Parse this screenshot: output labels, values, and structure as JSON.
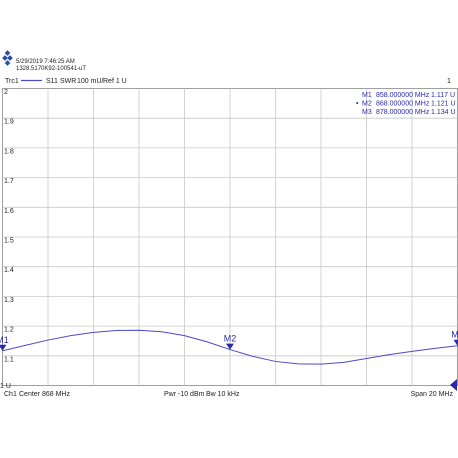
{
  "chart_data": {
    "type": "line",
    "timestamp": "5/29/2019 7:46:25 AM",
    "instrument_id": "1328.5170K92-100541-uT",
    "trace": {
      "name": "Trc1",
      "measurement": "S11",
      "format": "SWR",
      "scale": "100 mU/",
      "reference": "Ref 1 U",
      "channel_number": "1"
    },
    "footer": {
      "channel": "Ch1",
      "center": "Center 868 MHz",
      "power": "Pwr -10 dBm",
      "bandwidth": "Bw 10 kHz",
      "span": "Span 20 MHz"
    },
    "xlim": [
      858,
      878
    ],
    "ylim": [
      1,
      2
    ],
    "yticks": [
      {
        "value": 1,
        "label": "1 U"
      },
      1.1,
      1.2,
      1.3,
      1.4,
      1.5,
      1.6,
      1.7,
      1.8,
      1.9,
      2
    ],
    "grid": true,
    "x": [
      858,
      859,
      860,
      861,
      862,
      863,
      864,
      865,
      866,
      867,
      868,
      869,
      870,
      871,
      872,
      873,
      874,
      875,
      876,
      877,
      878
    ],
    "series": [
      {
        "name": "S11",
        "color": "#4a4ac8",
        "values": [
          1.117,
          1.135,
          1.153,
          1.168,
          1.179,
          1.185,
          1.186,
          1.181,
          1.168,
          1.147,
          1.121,
          1.098,
          1.081,
          1.073,
          1.072,
          1.078,
          1.091,
          1.104,
          1.115,
          1.125,
          1.134
        ]
      }
    ],
    "markers": [
      {
        "name": "M1",
        "x": 858,
        "x_label": "858.000000 MHz",
        "value": 1.117,
        "value_label": "1.117 U",
        "active": false
      },
      {
        "name": "M2",
        "x": 868,
        "x_label": "868.000000 MHz",
        "value": 1.121,
        "value_label": "1.121 U",
        "active": true
      },
      {
        "name": "M3",
        "x": 878,
        "x_label": "878.000000 MHz",
        "value": 1.134,
        "value_label": "1.134 U",
        "active": false
      }
    ]
  }
}
